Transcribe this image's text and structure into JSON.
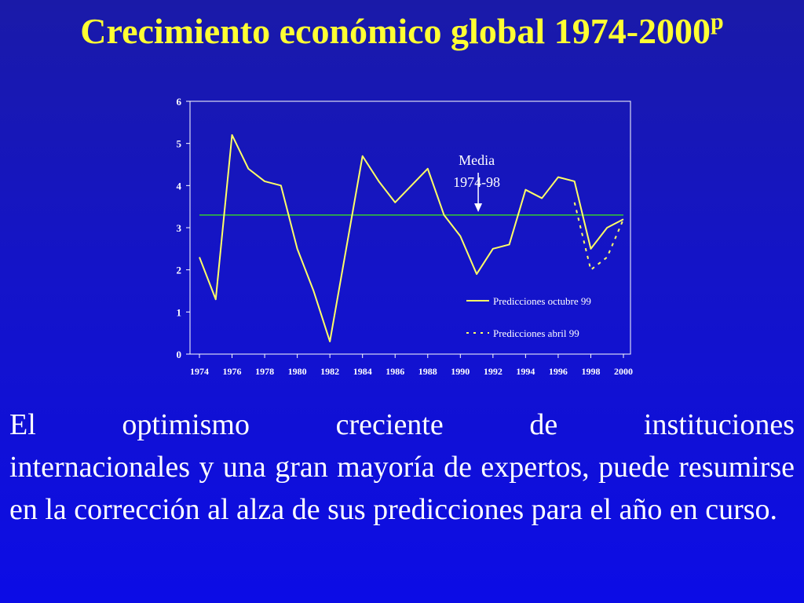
{
  "slide": {
    "title_main": "Crecimiento económico global 1974-2000",
    "title_sup": "p",
    "body_line1": "El optimismo creciente de instituciones",
    "body_rest": "internacionales y una gran mayoría de expertos, puede resumirse en la corrección al alza de sus predicciones para el año en curso."
  },
  "colors": {
    "background": "#1414c8",
    "title": "#ffff33",
    "series_line": "#ffff66",
    "mean_line": "#33cc33",
    "text": "#ffffff"
  },
  "chart_data": {
    "type": "line",
    "title": "",
    "xlabel": "",
    "ylabel": "",
    "xlim": [
      1974,
      2000
    ],
    "ylim": [
      0,
      6
    ],
    "y_ticks": [
      "0",
      "1",
      "2",
      "3",
      "4",
      "5",
      "6"
    ],
    "x_ticks": [
      "1974",
      "1976",
      "1978",
      "1980",
      "1982",
      "1984",
      "1986",
      "1988",
      "1990",
      "1992",
      "1994",
      "1996",
      "1998",
      "2000"
    ],
    "grid": false,
    "legend_position": "bottom-right",
    "series": [
      {
        "name": "Predicciones octubre 99",
        "style": "solid",
        "x": [
          1974,
          1975,
          1976,
          1977,
          1978,
          1979,
          1980,
          1981,
          1982,
          1983,
          1984,
          1985,
          1986,
          1987,
          1988,
          1989,
          1990,
          1991,
          1992,
          1993,
          1994,
          1995,
          1996,
          1997,
          1998,
          1999,
          2000
        ],
        "y": [
          2.3,
          1.3,
          5.2,
          4.4,
          4.1,
          4.0,
          2.5,
          1.5,
          0.3,
          2.5,
          4.7,
          4.1,
          3.6,
          4.0,
          4.4,
          3.3,
          2.8,
          1.9,
          2.5,
          2.6,
          3.9,
          3.7,
          4.2,
          4.1,
          2.5,
          3.0,
          3.2
        ]
      },
      {
        "name": "Predicciones abril 99",
        "style": "dashed",
        "x": [
          1997,
          1998,
          1999,
          2000
        ],
        "y": [
          3.6,
          2.0,
          2.3,
          3.2
        ]
      }
    ],
    "reference_line": {
      "y": 3.3
    },
    "annotation": {
      "line1": "Media",
      "line2": "1974-98",
      "x": 1991
    }
  }
}
